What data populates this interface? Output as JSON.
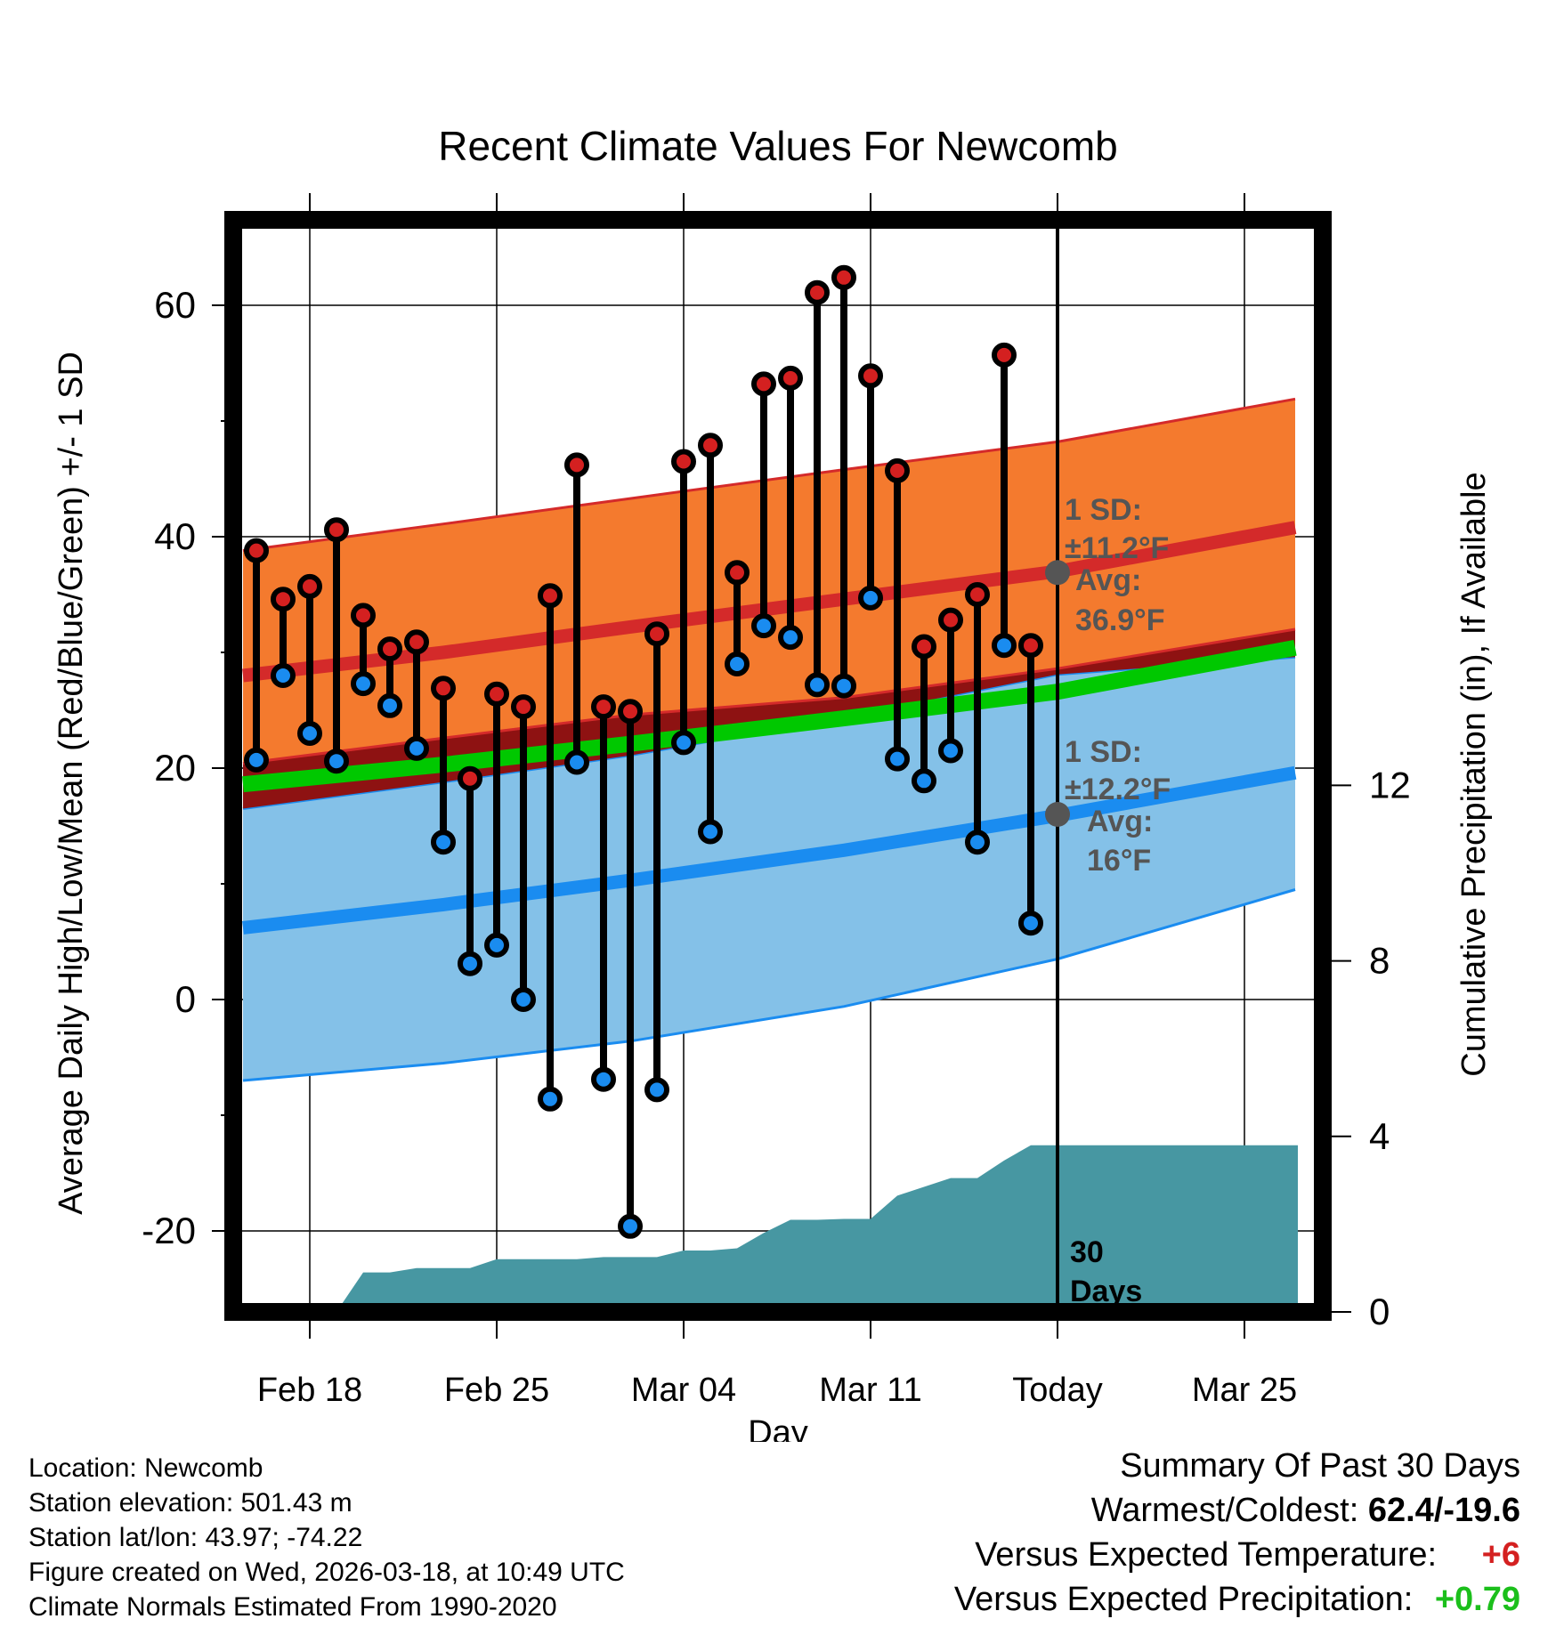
{
  "chart_data": {
    "type": "line",
    "title": "Recent Climate Values For Newcomb",
    "xlabel": "Day",
    "ylabel": "Average Daily High/Low/Mean (Red/Blue/Green) +/- 1 SD",
    "ylabel_right": "Cumulative Precipitation (in), If Available",
    "ylim": [
      -27.5,
      67.5
    ],
    "ylim_right": [
      0,
      22.6
    ],
    "xlim": [
      -3.3,
      37.2
    ],
    "yticks": [
      -20,
      0,
      20,
      40,
      60
    ],
    "yticks_right": [
      0,
      4,
      8,
      12
    ],
    "xticks": [
      {
        "day": 0,
        "label": "Feb 18"
      },
      {
        "day": 7,
        "label": "Feb 25"
      },
      {
        "day": 14,
        "label": "Mar 04"
      },
      {
        "day": 21,
        "label": "Mar 11"
      },
      {
        "day": 28,
        "label": "Today"
      },
      {
        "day": 35,
        "label": "Mar 25"
      }
    ],
    "days": [
      -2,
      -1,
      0,
      1,
      2,
      3,
      4,
      5,
      6,
      7,
      8,
      9,
      10,
      11,
      12,
      13,
      14,
      15,
      16,
      17,
      18,
      19,
      20,
      21,
      22,
      23,
      24,
      25,
      26,
      27
    ],
    "highs": [
      38.8,
      34.6,
      35.7,
      40.6,
      33.2,
      30.3,
      30.9,
      26.9,
      19.1,
      26.4,
      25.3,
      34.9,
      46.2,
      25.3,
      24.9,
      31.6,
      46.5,
      47.9,
      36.9,
      53.2,
      53.7,
      61.1,
      62.4,
      53.9,
      45.7,
      30.5,
      32.8,
      35.0,
      55.7,
      30.6
    ],
    "lows": [
      20.7,
      28.0,
      23.0,
      20.6,
      27.3,
      25.4,
      21.7,
      13.6,
      3.1,
      4.7,
      0.0,
      -8.6,
      20.5,
      -6.9,
      -19.6,
      -7.8,
      22.2,
      14.5,
      29.0,
      32.3,
      31.3,
      27.2,
      27.1,
      34.7,
      20.8,
      18.9,
      21.5,
      13.6,
      30.6,
      6.6
    ],
    "normals": {
      "days": [
        -2.5,
        5,
        12,
        20,
        28,
        36.9
      ],
      "high_mean": [
        28.0,
        30.0,
        32.2,
        34.6,
        37.0,
        40.8
      ],
      "high_upper": [
        38.8,
        41.1,
        43.3,
        45.8,
        48.2,
        51.9
      ],
      "high_lower": [
        20.4,
        22.6,
        24.6,
        26.1,
        28.6,
        32.0
      ],
      "mean": [
        18.6,
        20.3,
        22.1,
        24.3,
        26.6,
        30.4
      ],
      "low_mean": [
        6.2,
        8.2,
        10.3,
        12.9,
        15.9,
        19.6
      ],
      "low_upper": [
        16.5,
        18.8,
        21.1,
        24.4,
        28.1,
        29.6
      ],
      "low_lower": [
        -7.0,
        -5.5,
        -3.6,
        -0.6,
        3.5,
        9.5
      ]
    },
    "precip": {
      "days": [
        -2.5,
        1,
        2,
        3,
        4,
        5,
        6,
        7,
        8,
        9,
        10,
        11,
        12,
        13,
        14,
        15,
        16,
        17,
        18,
        19,
        20,
        21,
        22,
        23,
        24,
        25,
        26,
        27,
        28,
        37
      ],
      "values": [
        0,
        0,
        0.9,
        0.9,
        1.0,
        1.0,
        1.0,
        1.2,
        1.2,
        1.2,
        1.2,
        1.25,
        1.25,
        1.25,
        1.4,
        1.4,
        1.45,
        1.8,
        2.1,
        2.1,
        2.12,
        2.12,
        2.65,
        2.85,
        3.05,
        3.05,
        3.45,
        3.8,
        3.8,
        3.8
      ]
    },
    "today_day": 28,
    "annotations": {
      "high_sd_label": "1 SD:",
      "high_sd_value": "±11.2°F",
      "high_avg_label": "Avg:",
      "high_avg_value": "36.9°F",
      "high_avg": 36.9,
      "low_sd_label": "1 SD:",
      "low_sd_value": "±12.2°F",
      "low_avg_label": "Avg:",
      "low_avg_value": "16°F",
      "low_avg": 16.0,
      "window_label_1": "30",
      "window_label_2": "Days"
    },
    "colors": {
      "high_band": "#f47a2e",
      "high_line": "#d42a2a",
      "overlap_band": "#8e1212",
      "mean_line": "#00c800",
      "low_band": "#84c1e8",
      "low_line": "#1a8cf0",
      "low_edge": "#1a8cf0",
      "precip": "#4797a2",
      "high_point": "#d42020",
      "low_point": "#1a8cf0",
      "annotation": "#555555"
    }
  },
  "footer": {
    "location": "Location: Newcomb",
    "elevation": "Station elevation: 501.43 m",
    "latlon": "Station lat/lon: 43.97; -74.22",
    "created": "Figure created on Wed, 2026-03-18, at 10:49 UTC",
    "normals": "Climate Normals Estimated From 1990-2020"
  },
  "summary": {
    "title": "Summary Of Past 30 Days",
    "warm_cold_label": "Warmest/Coldest:",
    "warm_cold_value": "62.4/-19.6",
    "temp_label": "Versus Expected Temperature:",
    "temp_value": "+6",
    "precip_label": "Versus Expected Precipitation:",
    "precip_value": "+0.79"
  }
}
